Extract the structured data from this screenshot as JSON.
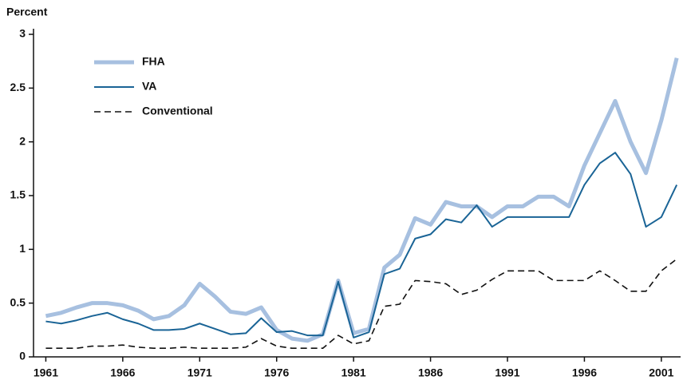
{
  "chart_data": {
    "type": "line",
    "y_label": "Percent",
    "x": [
      1961,
      1962,
      1963,
      1964,
      1965,
      1966,
      1967,
      1968,
      1969,
      1970,
      1971,
      1972,
      1973,
      1974,
      1975,
      1976,
      1977,
      1978,
      1979,
      1980,
      1981,
      1982,
      1983,
      1984,
      1985,
      1986,
      1987,
      1988,
      1989,
      1990,
      1991,
      1992,
      1993,
      1994,
      1995,
      1996,
      1997,
      1998,
      1999,
      2000,
      2001,
      2002
    ],
    "series": [
      {
        "name": "FHA",
        "color": "#a7c0e0",
        "values": [
          0.38,
          0.41,
          0.46,
          0.5,
          0.5,
          0.48,
          0.43,
          0.35,
          0.38,
          0.48,
          0.68,
          0.56,
          0.42,
          0.4,
          0.46,
          0.25,
          0.17,
          0.15,
          0.21,
          0.71,
          0.22,
          0.26,
          0.83,
          0.95,
          1.29,
          1.23,
          1.44,
          1.4,
          1.4,
          1.3,
          1.4,
          1.4,
          1.49,
          1.49,
          1.4,
          1.78,
          2.08,
          2.38,
          2.0,
          1.71,
          2.2,
          2.78
        ]
      },
      {
        "name": "VA",
        "color": "#1a6496",
        "values": [
          0.33,
          0.31,
          0.34,
          0.38,
          0.41,
          0.35,
          0.31,
          0.25,
          0.25,
          0.26,
          0.31,
          0.26,
          0.21,
          0.22,
          0.36,
          0.23,
          0.24,
          0.2,
          0.2,
          0.7,
          0.18,
          0.23,
          0.77,
          0.82,
          1.1,
          1.14,
          1.28,
          1.25,
          1.41,
          1.21,
          1.3,
          1.3,
          1.3,
          1.3,
          1.3,
          1.6,
          1.8,
          1.9,
          1.7,
          1.21,
          1.3,
          1.6
        ]
      },
      {
        "name": "Conventional",
        "color": "#111111",
        "dashed": true,
        "values": [
          0.08,
          0.08,
          0.08,
          0.1,
          0.1,
          0.11,
          0.09,
          0.08,
          0.08,
          0.09,
          0.08,
          0.08,
          0.08,
          0.09,
          0.17,
          0.1,
          0.08,
          0.08,
          0.08,
          0.2,
          0.12,
          0.15,
          0.47,
          0.49,
          0.71,
          0.7,
          0.68,
          0.58,
          0.62,
          0.72,
          0.8,
          0.8,
          0.8,
          0.71,
          0.71,
          0.71,
          0.8,
          0.71,
          0.61,
          0.61,
          0.8,
          0.91
        ]
      }
    ],
    "xlim": [
      1960.2,
      2002.2
    ],
    "xticks": [
      1961,
      1966,
      1971,
      1976,
      1981,
      1986,
      1991,
      1996,
      2001
    ],
    "ylim": [
      0,
      3
    ],
    "yticks": [
      0,
      0.5,
      1,
      1.5,
      2,
      2.5,
      3
    ],
    "grid": false
  }
}
